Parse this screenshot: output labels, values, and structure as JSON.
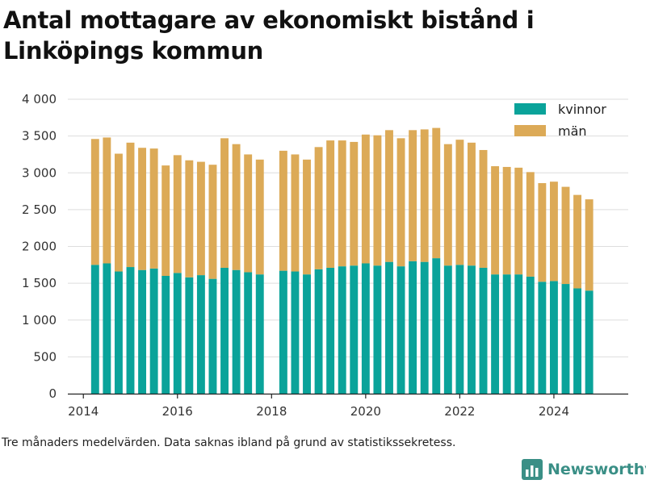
{
  "title": "Antal mottagare av ekonomiskt bistånd i Linköpings kommun",
  "caption": "Tre månaders medelvärden. Data saknas ibland på grund av statistikssekretess.",
  "brand": {
    "name": "Newsworthy",
    "icon": "bar-chart-logo-icon",
    "color": "#3a8f86"
  },
  "colors": {
    "kvinnor": "#0aa39a",
    "man": "#dcaa57",
    "grid": "#dddddd"
  },
  "chart_data": {
    "type": "bar",
    "stacked": true,
    "x": [
      "2014-Q2",
      "2014-Q3",
      "2014-Q4",
      "2015-Q1",
      "2015-Q2",
      "2015-Q3",
      "2015-Q4",
      "2016-Q1",
      "2016-Q2",
      "2016-Q3",
      "2016-Q4",
      "2017-Q1",
      "2017-Q2",
      "2017-Q3",
      "2017-Q4",
      "2018-Q2",
      "2018-Q3",
      "2018-Q4",
      "2019-Q1",
      "2019-Q2",
      "2019-Q3",
      "2019-Q4",
      "2020-Q1",
      "2020-Q2",
      "2020-Q3",
      "2020-Q4",
      "2021-Q1",
      "2021-Q2",
      "2021-Q3",
      "2021-Q4",
      "2022-Q1",
      "2022-Q2",
      "2022-Q3",
      "2022-Q4",
      "2023-Q1",
      "2023-Q2",
      "2023-Q3",
      "2023-Q4",
      "2024-Q1",
      "2024-Q2",
      "2024-Q3",
      "2024-Q4"
    ],
    "x_dates": [
      2014.25,
      2014.5,
      2014.75,
      2015.0,
      2015.25,
      2015.5,
      2015.75,
      2016.0,
      2016.25,
      2016.5,
      2016.75,
      2017.0,
      2017.25,
      2017.5,
      2017.75,
      2018.25,
      2018.5,
      2018.75,
      2019.0,
      2019.25,
      2019.5,
      2019.75,
      2020.0,
      2020.25,
      2020.5,
      2020.75,
      2021.0,
      2021.25,
      2021.5,
      2021.75,
      2022.0,
      2022.25,
      2022.5,
      2022.75,
      2023.0,
      2023.25,
      2023.5,
      2023.75,
      2024.0,
      2024.25,
      2024.5,
      2024.75
    ],
    "series": [
      {
        "name": "kvinnor",
        "values": [
          1750,
          1770,
          1660,
          1720,
          1680,
          1700,
          1600,
          1640,
          1580,
          1610,
          1560,
          1710,
          1680,
          1650,
          1620,
          1670,
          1660,
          1620,
          1690,
          1710,
          1730,
          1740,
          1770,
          1740,
          1790,
          1730,
          1800,
          1790,
          1840,
          1740,
          1750,
          1740,
          1710,
          1620,
          1620,
          1620,
          1590,
          1520,
          1530,
          1490,
          1430,
          1400
        ]
      },
      {
        "name": "män",
        "values": [
          1710,
          1710,
          1600,
          1690,
          1660,
          1630,
          1500,
          1600,
          1590,
          1540,
          1550,
          1760,
          1710,
          1600,
          1560,
          1630,
          1590,
          1560,
          1660,
          1730,
          1710,
          1680,
          1750,
          1770,
          1790,
          1740,
          1780,
          1800,
          1770,
          1650,
          1700,
          1670,
          1600,
          1470,
          1460,
          1450,
          1420,
          1340,
          1350,
          1320,
          1270,
          1240
        ]
      }
    ],
    "xlim": [
      2013.67,
      2025.58
    ],
    "ylim": [
      0,
      4000
    ],
    "xticks": [
      2014,
      2016,
      2018,
      2020,
      2022,
      2024
    ],
    "xtick_labels": [
      "2014",
      "2016",
      "2018",
      "2020",
      "2022",
      "2024"
    ],
    "yticks": [
      0,
      500,
      1000,
      1500,
      2000,
      2500,
      3000,
      3500,
      4000
    ],
    "ytick_labels": [
      "0",
      "500",
      "1 000",
      "1 500",
      "2 000",
      "2 500",
      "3 000",
      "3 500",
      "4 000"
    ],
    "legend": {
      "placement": "top-right",
      "items": [
        "kvinnor",
        "män"
      ]
    },
    "grid": "horizontal",
    "xlabel": "",
    "ylabel": ""
  }
}
